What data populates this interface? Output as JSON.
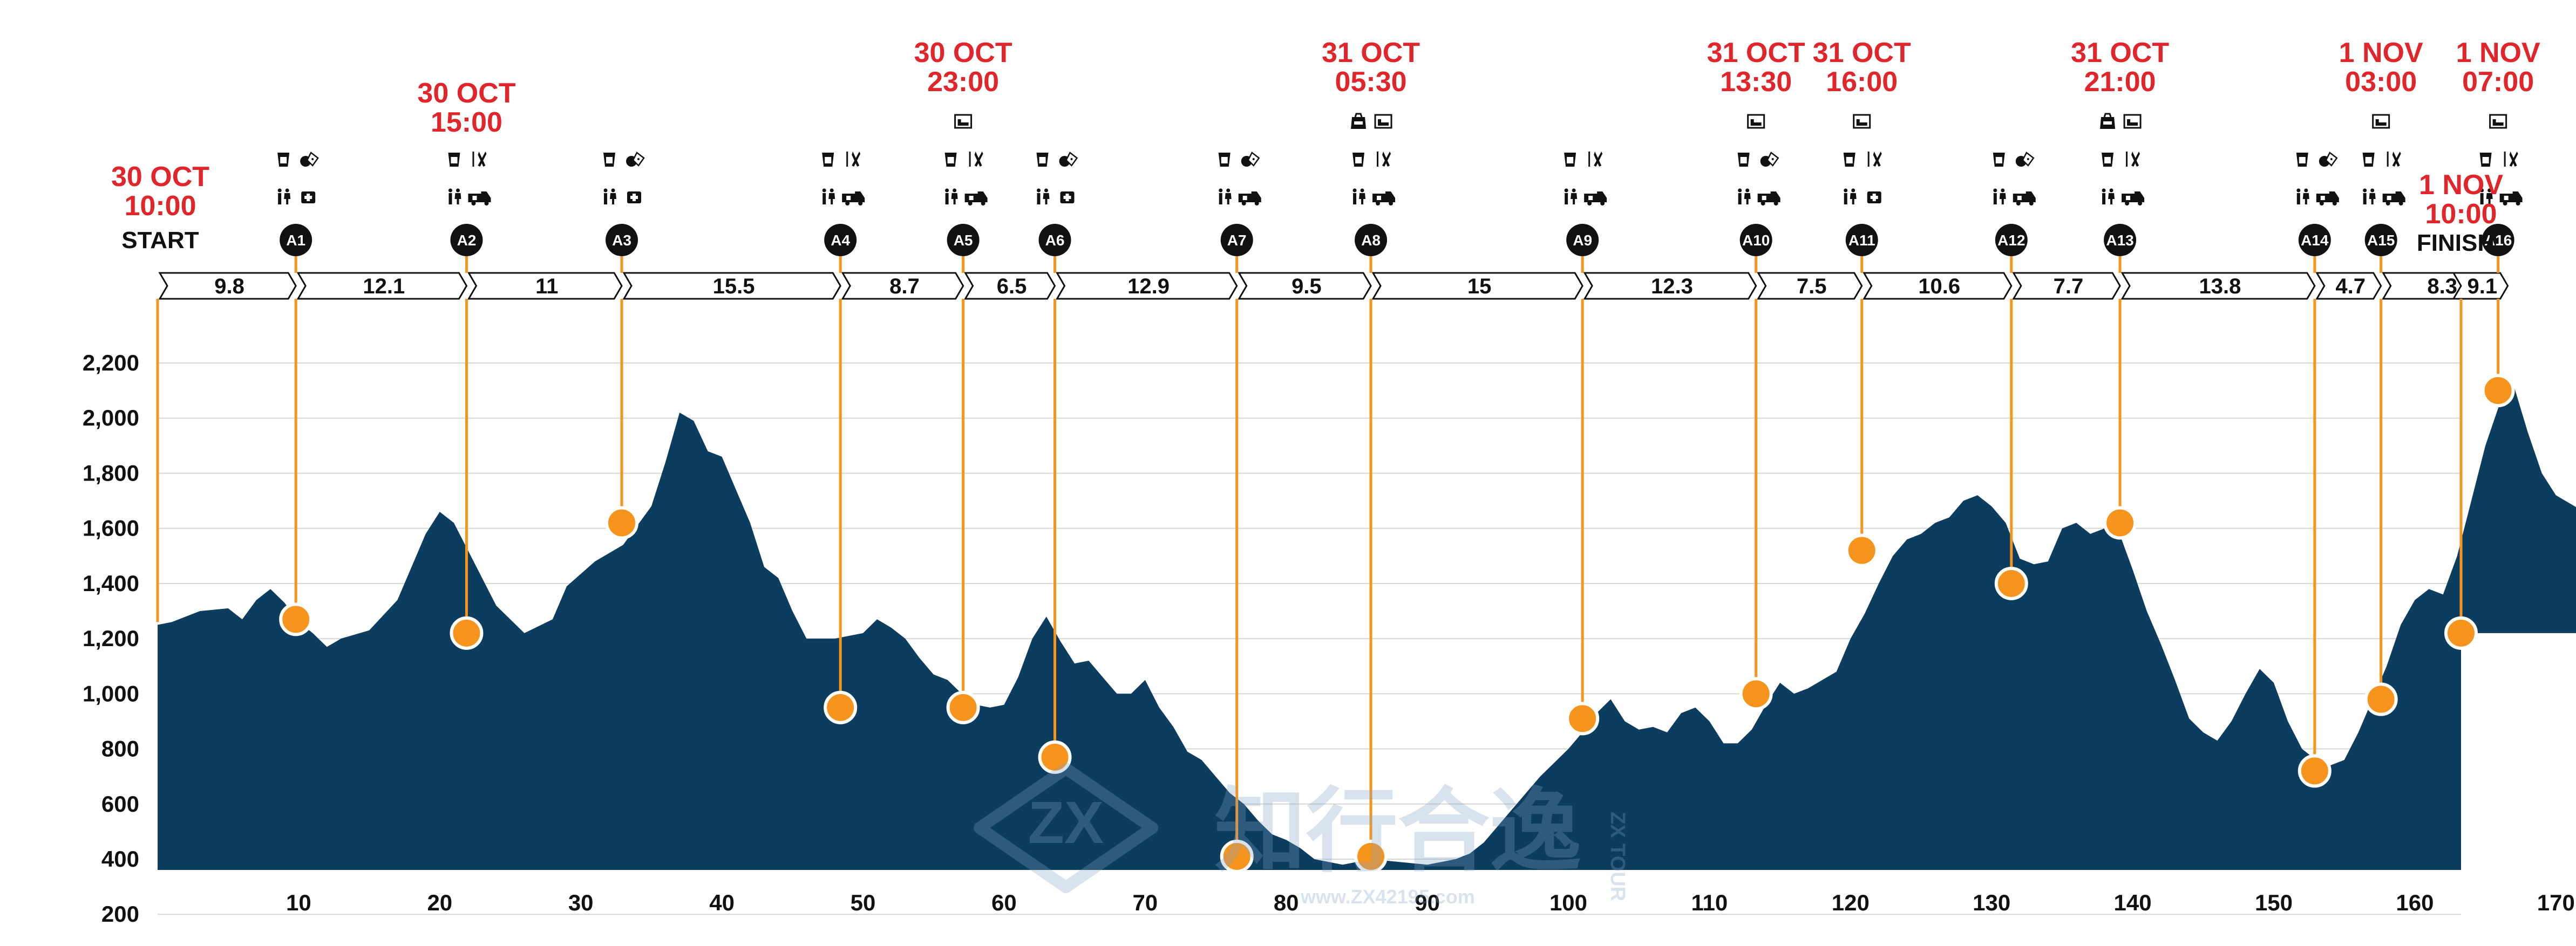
{
  "chart_data": {
    "type": "area",
    "title": "",
    "xlabel": "",
    "ylabel": "",
    "xlim": [
      0,
      175
    ],
    "ylim": [
      200,
      2300
    ],
    "grid": true,
    "x_ticks": [
      10,
      20,
      30,
      40,
      50,
      60,
      70,
      80,
      90,
      100,
      110,
      120,
      130,
      140,
      150,
      160,
      170,
      175
    ],
    "y_ticks": [
      200,
      400,
      600,
      800,
      1000,
      1200,
      1400,
      1600,
      1800,
      2000,
      2200
    ],
    "y_tick_labels": [
      "200",
      "400",
      "600",
      "800",
      "1,000",
      "1,200",
      "1,400",
      "1,600",
      "1,800",
      "2,000",
      "2,200"
    ],
    "colors": {
      "area": "#0c3d5e",
      "marker": "#f7941d",
      "date": "#e0252b",
      "text": "#111111",
      "grid": "#d6d6d6"
    },
    "elevation_profile": [
      [
        0,
        1250
      ],
      [
        1,
        1260
      ],
      [
        3,
        1300
      ],
      [
        5,
        1310
      ],
      [
        6,
        1270
      ],
      [
        7,
        1340
      ],
      [
        8,
        1380
      ],
      [
        9,
        1330
      ],
      [
        10,
        1260
      ],
      [
        11,
        1220
      ],
      [
        12,
        1170
      ],
      [
        13,
        1200
      ],
      [
        15,
        1230
      ],
      [
        17,
        1340
      ],
      [
        19,
        1580
      ],
      [
        20,
        1660
      ],
      [
        21,
        1620
      ],
      [
        22,
        1520
      ],
      [
        24,
        1320
      ],
      [
        26,
        1220
      ],
      [
        28,
        1270
      ],
      [
        29,
        1390
      ],
      [
        31,
        1480
      ],
      [
        33,
        1540
      ],
      [
        35,
        1680
      ],
      [
        36,
        1840
      ],
      [
        37,
        2020
      ],
      [
        38,
        1990
      ],
      [
        39,
        1880
      ],
      [
        40,
        1860
      ],
      [
        41,
        1740
      ],
      [
        42,
        1620
      ],
      [
        43,
        1460
      ],
      [
        44,
        1420
      ],
      [
        45,
        1300
      ],
      [
        46,
        1200
      ],
      [
        48,
        1200
      ],
      [
        50,
        1220
      ],
      [
        51,
        1270
      ],
      [
        52,
        1240
      ],
      [
        53,
        1200
      ],
      [
        54,
        1130
      ],
      [
        55,
        1070
      ],
      [
        56,
        1050
      ],
      [
        57,
        1000
      ],
      [
        58,
        960
      ],
      [
        59,
        950
      ],
      [
        60,
        960
      ],
      [
        61,
        1060
      ],
      [
        62,
        1200
      ],
      [
        63,
        1280
      ],
      [
        64,
        1190
      ],
      [
        65,
        1110
      ],
      [
        66,
        1120
      ],
      [
        67,
        1060
      ],
      [
        68,
        1000
      ],
      [
        69,
        1000
      ],
      [
        70,
        1050
      ],
      [
        71,
        950
      ],
      [
        72,
        880
      ],
      [
        73,
        790
      ],
      [
        74,
        760
      ],
      [
        75,
        700
      ],
      [
        76,
        640
      ],
      [
        77,
        600
      ],
      [
        78,
        540
      ],
      [
        79,
        490
      ],
      [
        80,
        470
      ],
      [
        81,
        440
      ],
      [
        82,
        400
      ],
      [
        84,
        380
      ],
      [
        86,
        400
      ],
      [
        88,
        390
      ],
      [
        90,
        380
      ],
      [
        92,
        400
      ],
      [
        93,
        420
      ],
      [
        94,
        460
      ],
      [
        95,
        520
      ],
      [
        96,
        580
      ],
      [
        97,
        640
      ],
      [
        98,
        700
      ],
      [
        99,
        750
      ],
      [
        100,
        800
      ],
      [
        101,
        860
      ],
      [
        102,
        930
      ],
      [
        103,
        980
      ],
      [
        104,
        900
      ],
      [
        105,
        870
      ],
      [
        106,
        880
      ],
      [
        107,
        860
      ],
      [
        108,
        930
      ],
      [
        109,
        950
      ],
      [
        110,
        900
      ],
      [
        111,
        820
      ],
      [
        112,
        820
      ],
      [
        113,
        870
      ],
      [
        114,
        960
      ],
      [
        115,
        1040
      ],
      [
        116,
        1000
      ],
      [
        117,
        1020
      ],
      [
        118,
        1050
      ],
      [
        119,
        1080
      ],
      [
        120,
        1200
      ],
      [
        121,
        1290
      ],
      [
        122,
        1400
      ],
      [
        123,
        1500
      ],
      [
        124,
        1560
      ],
      [
        125,
        1580
      ],
      [
        126,
        1620
      ],
      [
        127,
        1640
      ],
      [
        128,
        1700
      ],
      [
        129,
        1720
      ],
      [
        130,
        1680
      ],
      [
        131,
        1620
      ],
      [
        132,
        1490
      ],
      [
        133,
        1470
      ],
      [
        134,
        1480
      ],
      [
        135,
        1600
      ],
      [
        136,
        1620
      ],
      [
        137,
        1580
      ],
      [
        138,
        1600
      ],
      [
        139,
        1590
      ],
      [
        140,
        1450
      ],
      [
        141,
        1300
      ],
      [
        142,
        1180
      ],
      [
        143,
        1050
      ],
      [
        144,
        910
      ],
      [
        145,
        860
      ],
      [
        146,
        830
      ],
      [
        147,
        900
      ],
      [
        148,
        1000
      ],
      [
        149,
        1090
      ],
      [
        150,
        1040
      ],
      [
        151,
        900
      ],
      [
        152,
        800
      ],
      [
        153,
        760
      ],
      [
        154,
        740
      ],
      [
        155,
        760
      ],
      [
        156,
        860
      ],
      [
        157,
        980
      ],
      [
        158,
        1100
      ],
      [
        159,
        1250
      ],
      [
        160,
        1340
      ],
      [
        161,
        1380
      ],
      [
        162,
        1360
      ],
      [
        163,
        1500
      ],
      [
        164,
        1700
      ],
      [
        165,
        1900
      ],
      [
        166,
        2050
      ],
      [
        167,
        2120
      ],
      [
        168,
        1950
      ],
      [
        169,
        1800
      ],
      [
        170,
        1720
      ],
      [
        172,
        1660
      ],
      [
        173,
        1640
      ],
      [
        174,
        1500
      ],
      [
        175,
        1360
      ],
      [
        176,
        1250
      ],
      [
        177,
        1220
      ]
    ],
    "checkpoints": [
      {
        "id": "A1",
        "km": 9.8,
        "elevation": 1270,
        "dist_from_prev": "9.8"
      },
      {
        "id": "A2",
        "km": 21.9,
        "elevation": 1220,
        "dist_from_prev": "12.1"
      },
      {
        "id": "A3",
        "km": 32.9,
        "elevation": 1620,
        "dist_from_prev": "11"
      },
      {
        "id": "A4",
        "km": 48.4,
        "elevation": 950,
        "dist_from_prev": "15.5"
      },
      {
        "id": "A5",
        "km": 57.1,
        "elevation": 950,
        "dist_from_prev": "8.7"
      },
      {
        "id": "A6",
        "km": 63.6,
        "elevation": 770,
        "dist_from_prev": "6.5"
      },
      {
        "id": "A7",
        "km": 76.5,
        "elevation": 410,
        "dist_from_prev": "12.9"
      },
      {
        "id": "A8",
        "km": 86.0,
        "elevation": 410,
        "dist_from_prev": "9.5"
      },
      {
        "id": "A9",
        "km": 101.0,
        "elevation": 910,
        "dist_from_prev": "15"
      },
      {
        "id": "A10",
        "km": 113.3,
        "elevation": 1000,
        "dist_from_prev": "12.3"
      },
      {
        "id": "A11",
        "km": 120.8,
        "elevation": 1520,
        "dist_from_prev": "7.5"
      },
      {
        "id": "A12",
        "km": 131.4,
        "elevation": 1400,
        "dist_from_prev": "10.6"
      },
      {
        "id": "A13",
        "km": 139.1,
        "elevation": 1620,
        "dist_from_prev": "7.7"
      },
      {
        "id": "A14",
        "km": 152.9,
        "elevation": 720,
        "dist_from_prev": "13.8"
      },
      {
        "id": "A15",
        "km": 157.6,
        "elevation": 980,
        "dist_from_prev": "4.7"
      },
      {
        "id": "A16",
        "km": 165.9,
        "elevation": 2100,
        "dist_from_prev": "8.3"
      }
    ],
    "finish": {
      "km": 175,
      "elevation": 1220,
      "dist_from_prev": "9.1"
    },
    "endpoints": {
      "start": "START",
      "finish": "FINISH"
    },
    "time_labels": [
      {
        "at": "START",
        "lines": [
          "30 OCT",
          "10:00"
        ]
      },
      {
        "at": "A2",
        "lines": [
          "30 OCT",
          "15:00"
        ]
      },
      {
        "at": "A5",
        "lines": [
          "30 OCT",
          "23:00"
        ]
      },
      {
        "at": "A8",
        "lines": [
          "31 OCT",
          "05:30"
        ]
      },
      {
        "at": "A10",
        "lines": [
          "31 OCT",
          "13:30"
        ]
      },
      {
        "at": "A11",
        "lines": [
          "31 OCT",
          "16:00"
        ]
      },
      {
        "at": "A13",
        "lines": [
          "31 OCT",
          "21:00"
        ]
      },
      {
        "at": "A15",
        "lines": [
          "1 NOV",
          "03:00"
        ]
      },
      {
        "at": "A16",
        "lines": [
          "1 NOV",
          "07:00"
        ]
      },
      {
        "at": "FINISH",
        "lines": [
          "1 NOV",
          "10:00"
        ]
      }
    ],
    "service_icons": [
      {
        "at": "A1",
        "top": [
          "water-icon",
          "food-icon"
        ],
        "bottom": [
          "toilet-icon",
          "medical-icon"
        ]
      },
      {
        "at": "A2",
        "top": [
          "water-icon",
          "meal-icon"
        ],
        "bottom": [
          "toilet-icon",
          "ambulance-icon"
        ]
      },
      {
        "at": "A3",
        "top": [
          "water-icon",
          "food-icon"
        ],
        "bottom": [
          "toilet-icon",
          "medical-icon"
        ]
      },
      {
        "at": "A4",
        "top": [
          "water-icon",
          "meal-icon"
        ],
        "bottom": [
          "toilet-icon",
          "ambulance-icon"
        ]
      },
      {
        "at": "A5",
        "top": [
          "water-icon",
          "meal-icon"
        ],
        "bottom": [
          "toilet-icon",
          "ambulance-icon"
        ],
        "extra": [
          "sleep-icon"
        ]
      },
      {
        "at": "A6",
        "top": [
          "water-icon",
          "food-icon"
        ],
        "bottom": [
          "toilet-icon",
          "medical-icon"
        ]
      },
      {
        "at": "A7",
        "top": [
          "water-icon",
          "food-icon"
        ],
        "bottom": [
          "toilet-icon",
          "ambulance-icon"
        ]
      },
      {
        "at": "A8",
        "top": [
          "water-icon",
          "meal-icon"
        ],
        "bottom": [
          "toilet-icon",
          "ambulance-icon"
        ],
        "extra": [
          "drop-bag-icon",
          "sleep-icon"
        ]
      },
      {
        "at": "A9",
        "top": [
          "water-icon",
          "meal-icon"
        ],
        "bottom": [
          "toilet-icon",
          "ambulance-icon"
        ]
      },
      {
        "at": "A10",
        "top": [
          "water-icon",
          "food-icon"
        ],
        "bottom": [
          "toilet-icon",
          "ambulance-icon"
        ],
        "extra": [
          "sleep-icon"
        ]
      },
      {
        "at": "A11",
        "top": [
          "water-icon",
          "meal-icon"
        ],
        "bottom": [
          "toilet-icon",
          "medical-icon"
        ],
        "extra": [
          "sleep-icon"
        ]
      },
      {
        "at": "A12",
        "top": [
          "water-icon",
          "food-icon"
        ],
        "bottom": [
          "toilet-icon",
          "ambulance-icon"
        ]
      },
      {
        "at": "A13",
        "top": [
          "water-icon",
          "meal-icon"
        ],
        "bottom": [
          "toilet-icon",
          "ambulance-icon"
        ],
        "extra": [
          "drop-bag-icon",
          "sleep-icon"
        ]
      },
      {
        "at": "A14",
        "top": [
          "water-icon",
          "food-icon"
        ],
        "bottom": [
          "toilet-icon",
          "ambulance-icon"
        ]
      },
      {
        "at": "A15",
        "top": [
          "water-icon",
          "meal-icon"
        ],
        "bottom": [
          "toilet-icon",
          "ambulance-icon"
        ],
        "extra": [
          "sleep-icon"
        ]
      },
      {
        "at": "A16",
        "top": [
          "water-icon",
          "meal-icon"
        ],
        "bottom": [
          "toilet-icon",
          "ambulance-icon"
        ],
        "extra": [
          "sleep-icon"
        ]
      }
    ]
  },
  "watermark": {
    "brand": "知行合逸",
    "tag": "ZX TOUR",
    "url": "www.ZX42195.com"
  }
}
